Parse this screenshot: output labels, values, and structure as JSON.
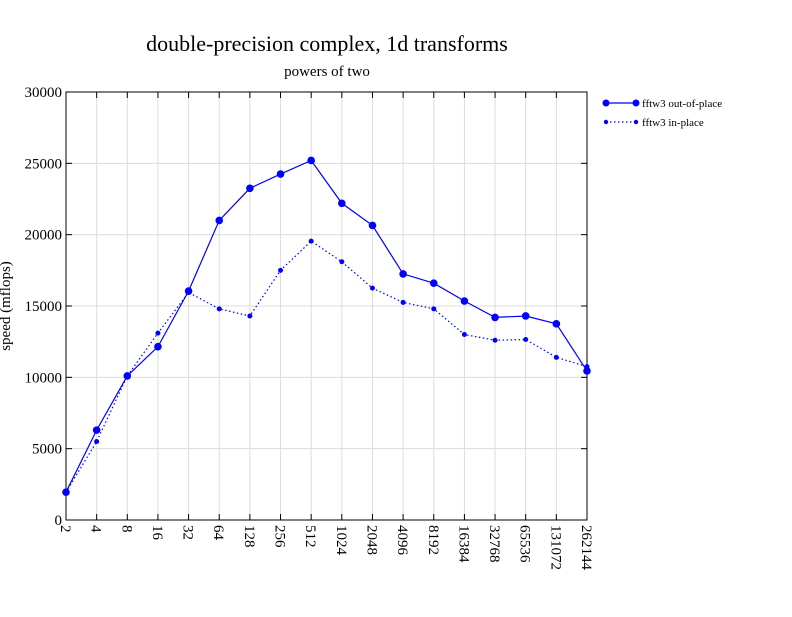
{
  "chart_data": {
    "type": "line",
    "title": "double-precision complex, 1d transforms",
    "subtitle": "powers of two",
    "xlabel": "",
    "ylabel": "speed (mflops)",
    "x_scale": "log2",
    "categories": [
      "2",
      "4",
      "8",
      "16",
      "32",
      "64",
      "128",
      "256",
      "512",
      "1024",
      "2048",
      "4096",
      "8192",
      "16384",
      "32768",
      "65536",
      "131072",
      "262144"
    ],
    "y_ticks": [
      "0",
      "5000",
      "10000",
      "15000",
      "20000",
      "25000",
      "30000"
    ],
    "ylim": [
      0,
      30000
    ],
    "grid": true,
    "legend_position": "right",
    "series": [
      {
        "name": "fftw3 out-of-place",
        "color": "#0000ff",
        "line_style": "solid",
        "marker": "filled-circle",
        "values": [
          1950,
          6300,
          10100,
          12150,
          16050,
          21000,
          23250,
          24250,
          25200,
          22200,
          20650,
          17250,
          16600,
          15350,
          14200,
          14300,
          13750,
          10450
        ]
      },
      {
        "name": "fftw3 in-place",
        "color": "#0000ff",
        "line_style": "dotted",
        "marker": "small-circle",
        "values": [
          1950,
          5500,
          10100,
          13100,
          15950,
          14800,
          14300,
          17500,
          19550,
          18100,
          16250,
          15250,
          14800,
          13000,
          12600,
          12650,
          11400,
          10750
        ]
      }
    ]
  }
}
